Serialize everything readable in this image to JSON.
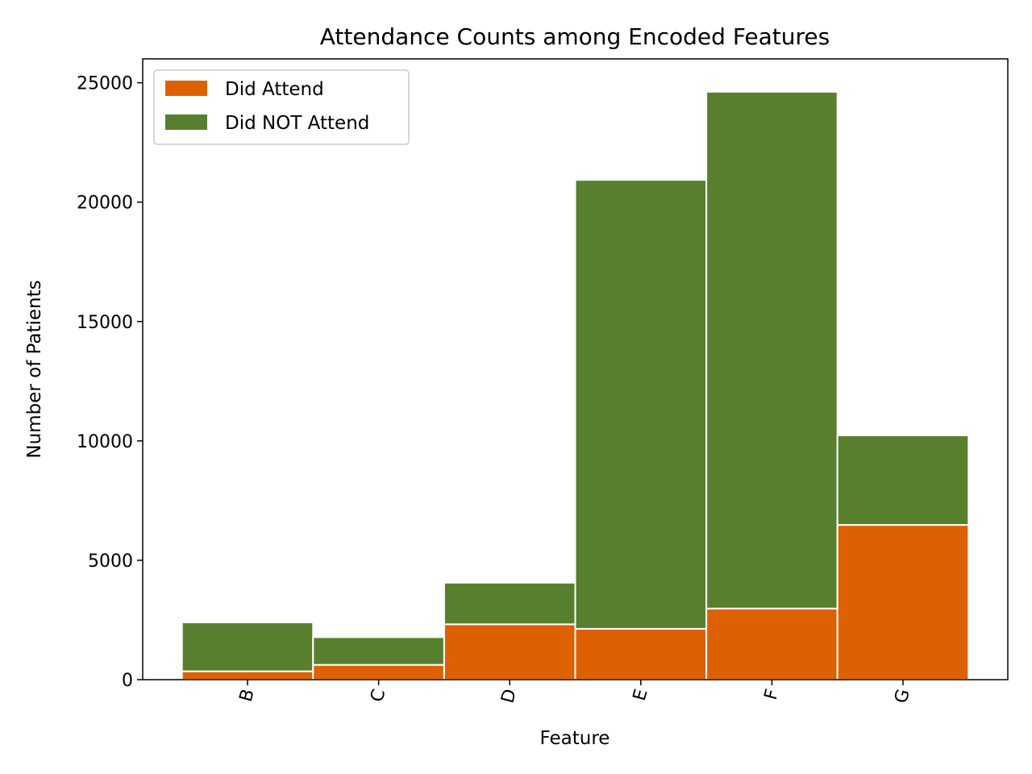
{
  "chart_data": {
    "type": "bar",
    "stacked": true,
    "title": "Attendance Counts among Encoded Features",
    "xlabel": "Feature",
    "ylabel": "Number of Patients",
    "categories": [
      "B",
      "C",
      "D",
      "E",
      "F",
      "G"
    ],
    "ylim": [
      0,
      26000
    ],
    "yticks": [
      0,
      5000,
      10000,
      15000,
      20000,
      25000
    ],
    "grid": false,
    "legend_position": "top-left",
    "series": [
      {
        "name": "Did Attend",
        "color": "#dd6100",
        "values": [
          350,
          620,
          2320,
          2130,
          2980,
          6480
        ]
      },
      {
        "name": "Did NOT Attend",
        "color": "#587f2e",
        "values": [
          2050,
          1160,
          1740,
          18800,
          21640,
          3750
        ]
      }
    ]
  }
}
